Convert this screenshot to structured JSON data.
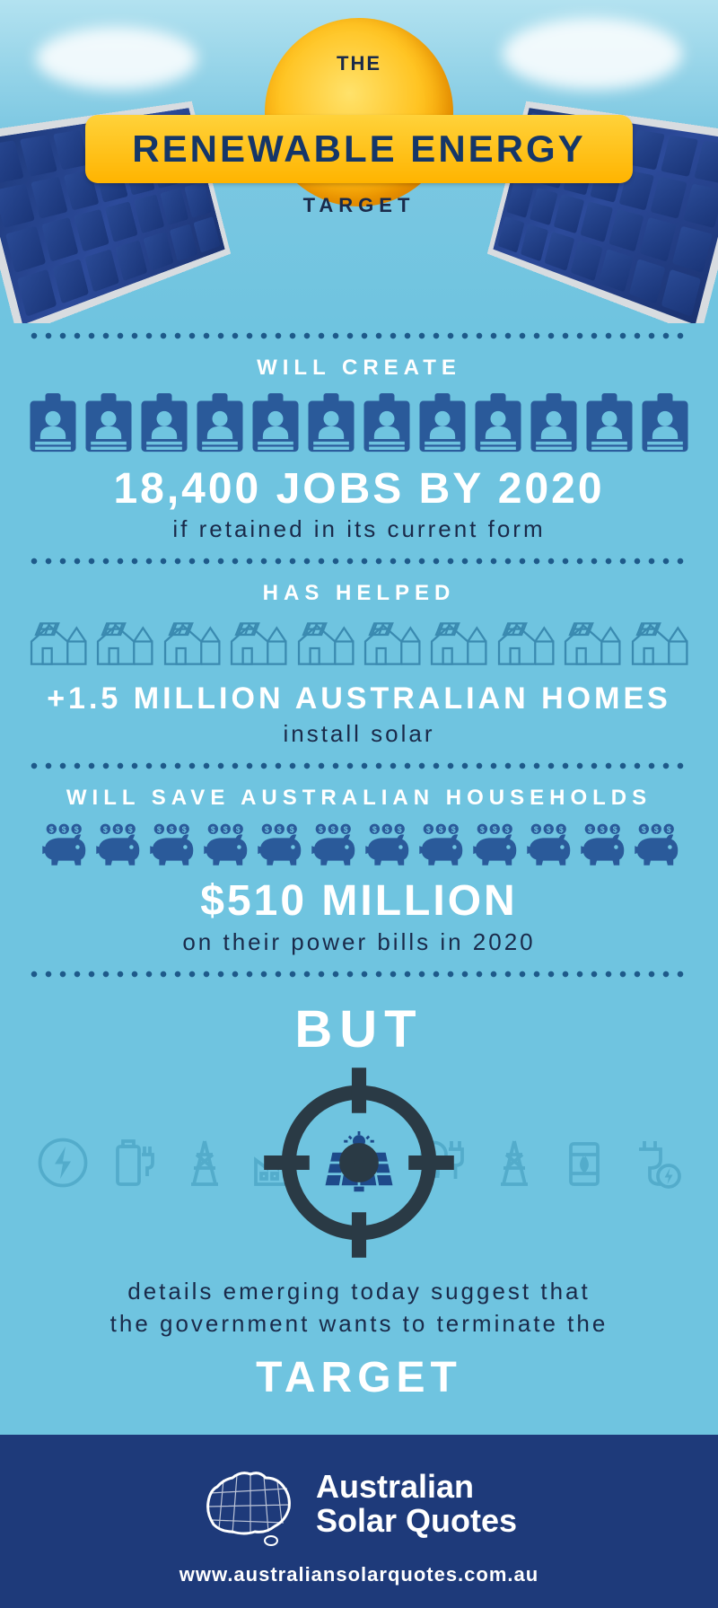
{
  "colors": {
    "background": "#6fc4e0",
    "dark_blue": "#1e3a7a",
    "accent_blue": "#1e5a8a",
    "icon_blue": "#2a5a9a",
    "outline_blue": "#3a8ab0",
    "white": "#ffffff",
    "text_dark": "#1a2a4a",
    "sun_yellow": "#ffc423",
    "banner_yellow": "#ffb400",
    "crosshair": "#2a3a45"
  },
  "header": {
    "pre": "THE",
    "main": "RENEWABLE ENERGY",
    "post": "TARGET"
  },
  "sections": {
    "jobs": {
      "label": "WILL CREATE",
      "stat": "18,400 JOBS BY 2020",
      "sub": "if retained in its current form",
      "icon_count": 12
    },
    "homes": {
      "label": "HAS HELPED",
      "stat": "+1.5 MILLION AUSTRALIAN HOMES",
      "sub": "install solar",
      "icon_count": 10
    },
    "savings": {
      "label": "WILL SAVE AUSTRALIAN HOUSEHOLDS",
      "stat": "$510 MILLION",
      "sub": "on their power bills in 2020",
      "icon_count": 12
    },
    "but": {
      "label": "BUT",
      "detail": "details emerging today suggest that\nthe government wants to terminate the",
      "target": "TARGET"
    }
  },
  "footer": {
    "brand_line1": "Australian",
    "brand_line2": "Solar Quotes",
    "url": "www.australiansolarquotes.com.au"
  }
}
